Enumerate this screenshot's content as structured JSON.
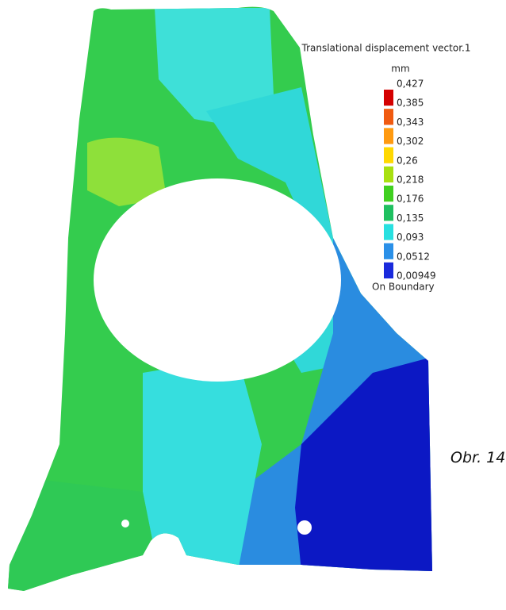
{
  "legend": {
    "title": "Translational displacement vector.1",
    "unit": "mm",
    "labels": [
      "0,427",
      "0,385",
      "0,343",
      "0,302",
      "0,26",
      "0,218",
      "0,176",
      "0,135",
      "0,093",
      "0,0512",
      "0,00949"
    ],
    "colors": [
      "#d40000",
      "#f05a10",
      "#ff9a10",
      "#ffd800",
      "#a8e010",
      "#40d020",
      "#1fc060",
      "#28e0e0",
      "#2a90e8",
      "#1a2adc"
    ],
    "note": "On Boundary"
  },
  "caption": "Obr. 14"
}
